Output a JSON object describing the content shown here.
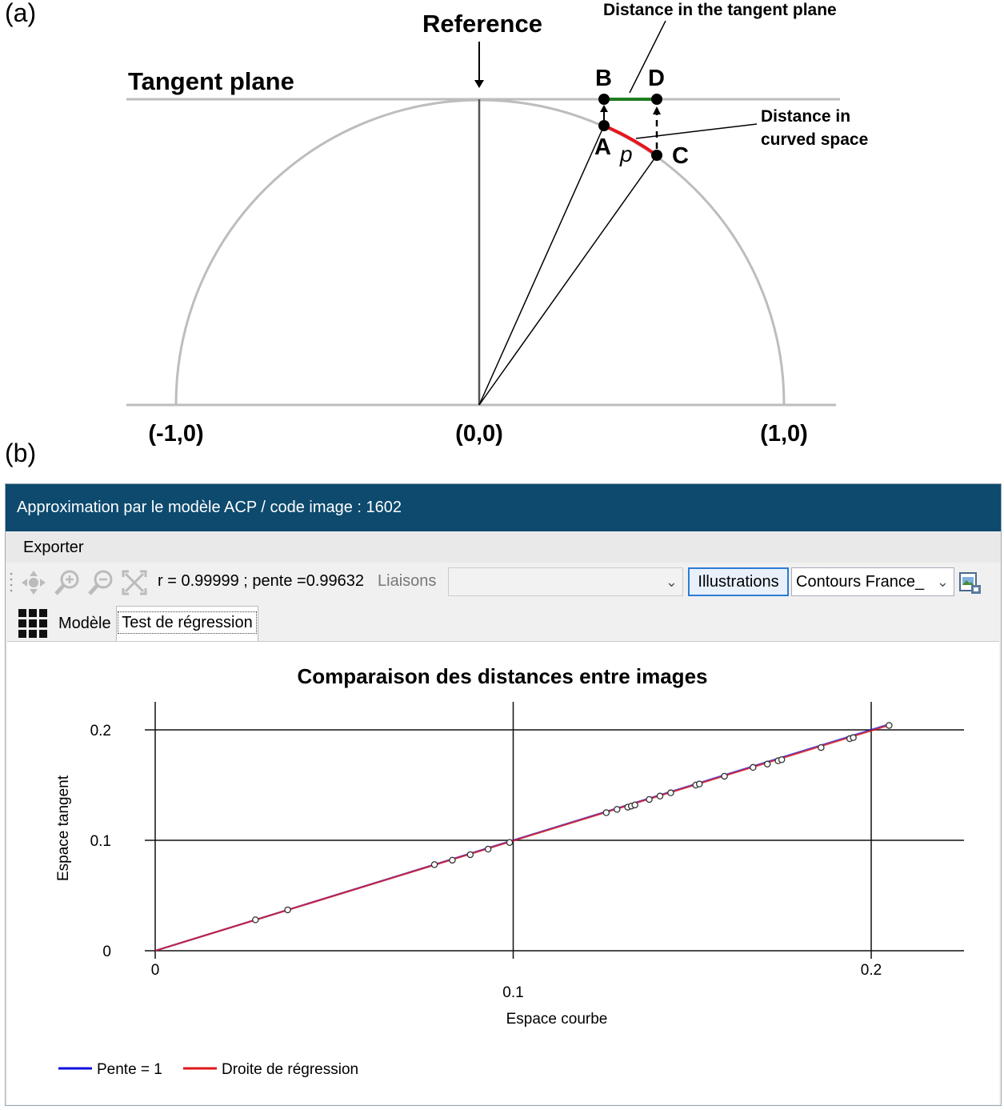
{
  "panel_a": {
    "label": "(a)",
    "reference_label": "Reference",
    "tangent_plane_label": "Tangent plane",
    "dist_tangent_label": "Distance in the tangent plane",
    "dist_curved_line1": "Distance in",
    "dist_curved_line2": "curved space",
    "point_a": "A",
    "point_b": "B",
    "point_c": "C",
    "point_d": "D",
    "p_label": "p",
    "coord_left": "(-1,0)",
    "coord_center": "(0,0)",
    "coord_right": "(1,0)",
    "colors": {
      "curved": "#e8141e",
      "tangent": "#1e7d1e",
      "circle": "#bdbdbd"
    }
  },
  "panel_b": {
    "label": "(b)",
    "window_title": "Approximation par le modèle ACP / code image : 1602",
    "menu_export": "Exporter",
    "stats_text": "r = 0.99999 ; pente =0.99632",
    "liaisons_label": "Liaisons",
    "illustrations_button": "Illustrations",
    "contours_select": "Contours France_",
    "tab_model": "Modèle",
    "tab_test": "Test de régression",
    "icons": [
      "move-icon",
      "zoom-in-icon",
      "zoom-out-icon",
      "fit-icon",
      "export-image-icon",
      "grid-icon"
    ],
    "colors": {
      "titlebar": "#0d4a6e",
      "pente1": "#1010e0",
      "regression": "#e01818"
    }
  },
  "chart_data": {
    "type": "scatter",
    "title": "Comparaison des distances entre images",
    "xlabel": "Espace courbe",
    "ylabel": "Espace tangent",
    "xlim": [
      0,
      0.2
    ],
    "ylim": [
      0,
      0.2
    ],
    "x_ticks": [
      "0",
      "0.1",
      "0.2"
    ],
    "y_ticks": [
      "0",
      "0.1",
      "0.2"
    ],
    "grid": true,
    "legend_position": "bottom-left",
    "series": [
      {
        "name": "Pente = 1",
        "type": "line",
        "color": "#1010e0",
        "x": [
          0,
          0.205
        ],
        "y": [
          0,
          0.205
        ]
      },
      {
        "name": "Droite de régression",
        "type": "line",
        "color": "#e01818",
        "x": [
          0,
          0.205
        ],
        "y": [
          0,
          0.2042
        ]
      }
    ],
    "points": {
      "x": [
        0.028,
        0.037,
        0.078,
        0.083,
        0.088,
        0.093,
        0.099,
        0.126,
        0.129,
        0.132,
        0.133,
        0.134,
        0.138,
        0.141,
        0.144,
        0.151,
        0.152,
        0.159,
        0.167,
        0.171,
        0.174,
        0.175,
        0.186,
        0.194,
        0.195,
        0.205
      ],
      "y": [
        0.028,
        0.037,
        0.078,
        0.082,
        0.087,
        0.092,
        0.098,
        0.125,
        0.128,
        0.13,
        0.131,
        0.132,
        0.137,
        0.14,
        0.143,
        0.15,
        0.151,
        0.158,
        0.166,
        0.169,
        0.172,
        0.173,
        0.184,
        0.192,
        0.193,
        0.204
      ]
    }
  }
}
